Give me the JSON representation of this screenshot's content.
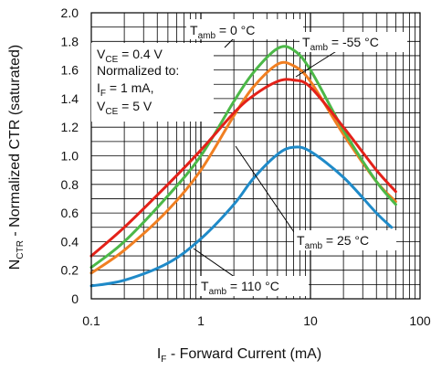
{
  "chart_data": {
    "type": "line",
    "x_scale": "log",
    "xlim": [
      0.1,
      100
    ],
    "ylim": [
      0,
      2.0
    ],
    "x_ticks": [
      "0.1",
      "1",
      "10",
      "100"
    ],
    "y_ticks": [
      "0",
      "0.2",
      "0.4",
      "0.6",
      "0.8",
      "1.0",
      "1.2",
      "1.4",
      "1.6",
      "1.8",
      "2.0"
    ],
    "grid": true,
    "xlabel": {
      "main": "I",
      "sub": "F",
      "rest": " - Forward Current (mA)"
    },
    "ylabel": {
      "main": "N",
      "sub": "CTR",
      "rest": " - Normalized CTR (saturated)"
    },
    "conditions": {
      "line1_main": "V",
      "line1_sub": "CE",
      "line1_rest": " = 0.4 V",
      "line2": "Normalized to:",
      "line3_main": "I",
      "line3_sub": "F",
      "line3_rest": " = 1 mA,",
      "line4_main": "V",
      "line4_sub": "CE",
      "line4_rest": " = 5 V"
    },
    "series": [
      {
        "label_main": "T",
        "label_sub": "amb",
        "label_rest": " = 0 °C",
        "color": "#4cb848",
        "x": [
          0.1,
          0.2,
          0.5,
          1,
          2,
          3,
          5,
          7,
          10,
          20,
          40,
          60
        ],
        "y": [
          0.22,
          0.4,
          0.72,
          1.0,
          1.38,
          1.58,
          1.75,
          1.74,
          1.6,
          1.18,
          0.82,
          0.66
        ]
      },
      {
        "label_main": "T",
        "label_sub": "amb",
        "label_rest": " = -55 °C",
        "color": "#f07f22",
        "x": [
          0.1,
          0.2,
          0.5,
          1,
          2,
          3,
          5,
          7,
          10,
          20,
          40,
          60
        ],
        "y": [
          0.18,
          0.34,
          0.62,
          0.9,
          1.28,
          1.48,
          1.64,
          1.63,
          1.52,
          1.15,
          0.82,
          0.68
        ]
      },
      {
        "label_main": "T",
        "label_sub": "amb",
        "label_rest": " = 25 °C",
        "color": "#e32119",
        "x": [
          0.1,
          0.2,
          0.5,
          1,
          2,
          3,
          5,
          7,
          10,
          20,
          40,
          60
        ],
        "y": [
          0.3,
          0.5,
          0.8,
          1.04,
          1.3,
          1.42,
          1.52,
          1.53,
          1.48,
          1.2,
          0.9,
          0.75
        ]
      },
      {
        "label_main": "T",
        "label_sub": "amb",
        "label_rest": " = 110 °C",
        "color": "#1f8ac8",
        "x": [
          0.1,
          0.2,
          0.5,
          1,
          2,
          3,
          5,
          7,
          10,
          20,
          40,
          55
        ],
        "y": [
          0.09,
          0.13,
          0.25,
          0.42,
          0.66,
          0.84,
          1.01,
          1.06,
          1.03,
          0.85,
          0.6,
          0.5
        ]
      }
    ]
  }
}
